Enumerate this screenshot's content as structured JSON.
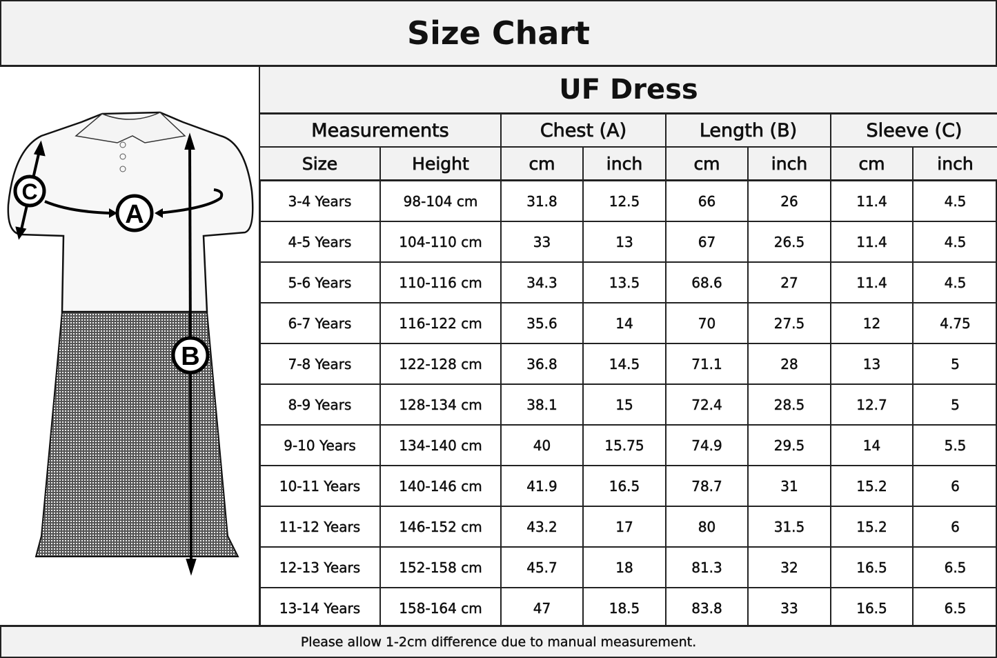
{
  "title": "Size Chart",
  "product": "UF Dress",
  "diagram_labels": {
    "chest": "A",
    "length": "B",
    "sleeve": "C"
  },
  "group_headers": [
    "Measurements",
    "Chest (A)",
    "Length (B)",
    "Sleeve (C)"
  ],
  "sub_headers": [
    "Size",
    "Height",
    "cm",
    "inch",
    "cm",
    "inch",
    "cm",
    "inch"
  ],
  "rows": [
    [
      "3-4 Years",
      "98-104 cm",
      "31.8",
      "12.5",
      "66",
      "26",
      "11.4",
      "4.5"
    ],
    [
      "4-5 Years",
      "104-110 cm",
      "33",
      "13",
      "67",
      "26.5",
      "11.4",
      "4.5"
    ],
    [
      "5-6 Years",
      "110-116 cm",
      "34.3",
      "13.5",
      "68.6",
      "27",
      "11.4",
      "4.5"
    ],
    [
      "6-7 Years",
      "116-122 cm",
      "35.6",
      "14",
      "70",
      "27.5",
      "12",
      "4.75"
    ],
    [
      "7-8 Years",
      "122-128 cm",
      "36.8",
      "14.5",
      "71.1",
      "28",
      "13",
      "5"
    ],
    [
      "8-9 Years",
      "128-134 cm",
      "38.1",
      "15",
      "72.4",
      "28.5",
      "12.7",
      "5"
    ],
    [
      "9-10 Years",
      "134-140 cm",
      "40",
      "15.75",
      "74.9",
      "29.5",
      "14",
      "5.5"
    ],
    [
      "10-11 Years",
      "140-146 cm",
      "41.9",
      "16.5",
      "78.7",
      "31",
      "15.2",
      "6"
    ],
    [
      "11-12 Years",
      "146-152 cm",
      "43.2",
      "17",
      "80",
      "31.5",
      "15.2",
      "6"
    ],
    [
      "12-13 Years",
      "152-158 cm",
      "45.7",
      "18",
      "81.3",
      "32",
      "16.5",
      "6.5"
    ],
    [
      "13-14 Years",
      "158-164 cm",
      "47",
      "18.5",
      "83.8",
      "33",
      "16.5",
      "6.5"
    ]
  ],
  "footer": "Please allow 1-2cm difference due to manual measurement."
}
